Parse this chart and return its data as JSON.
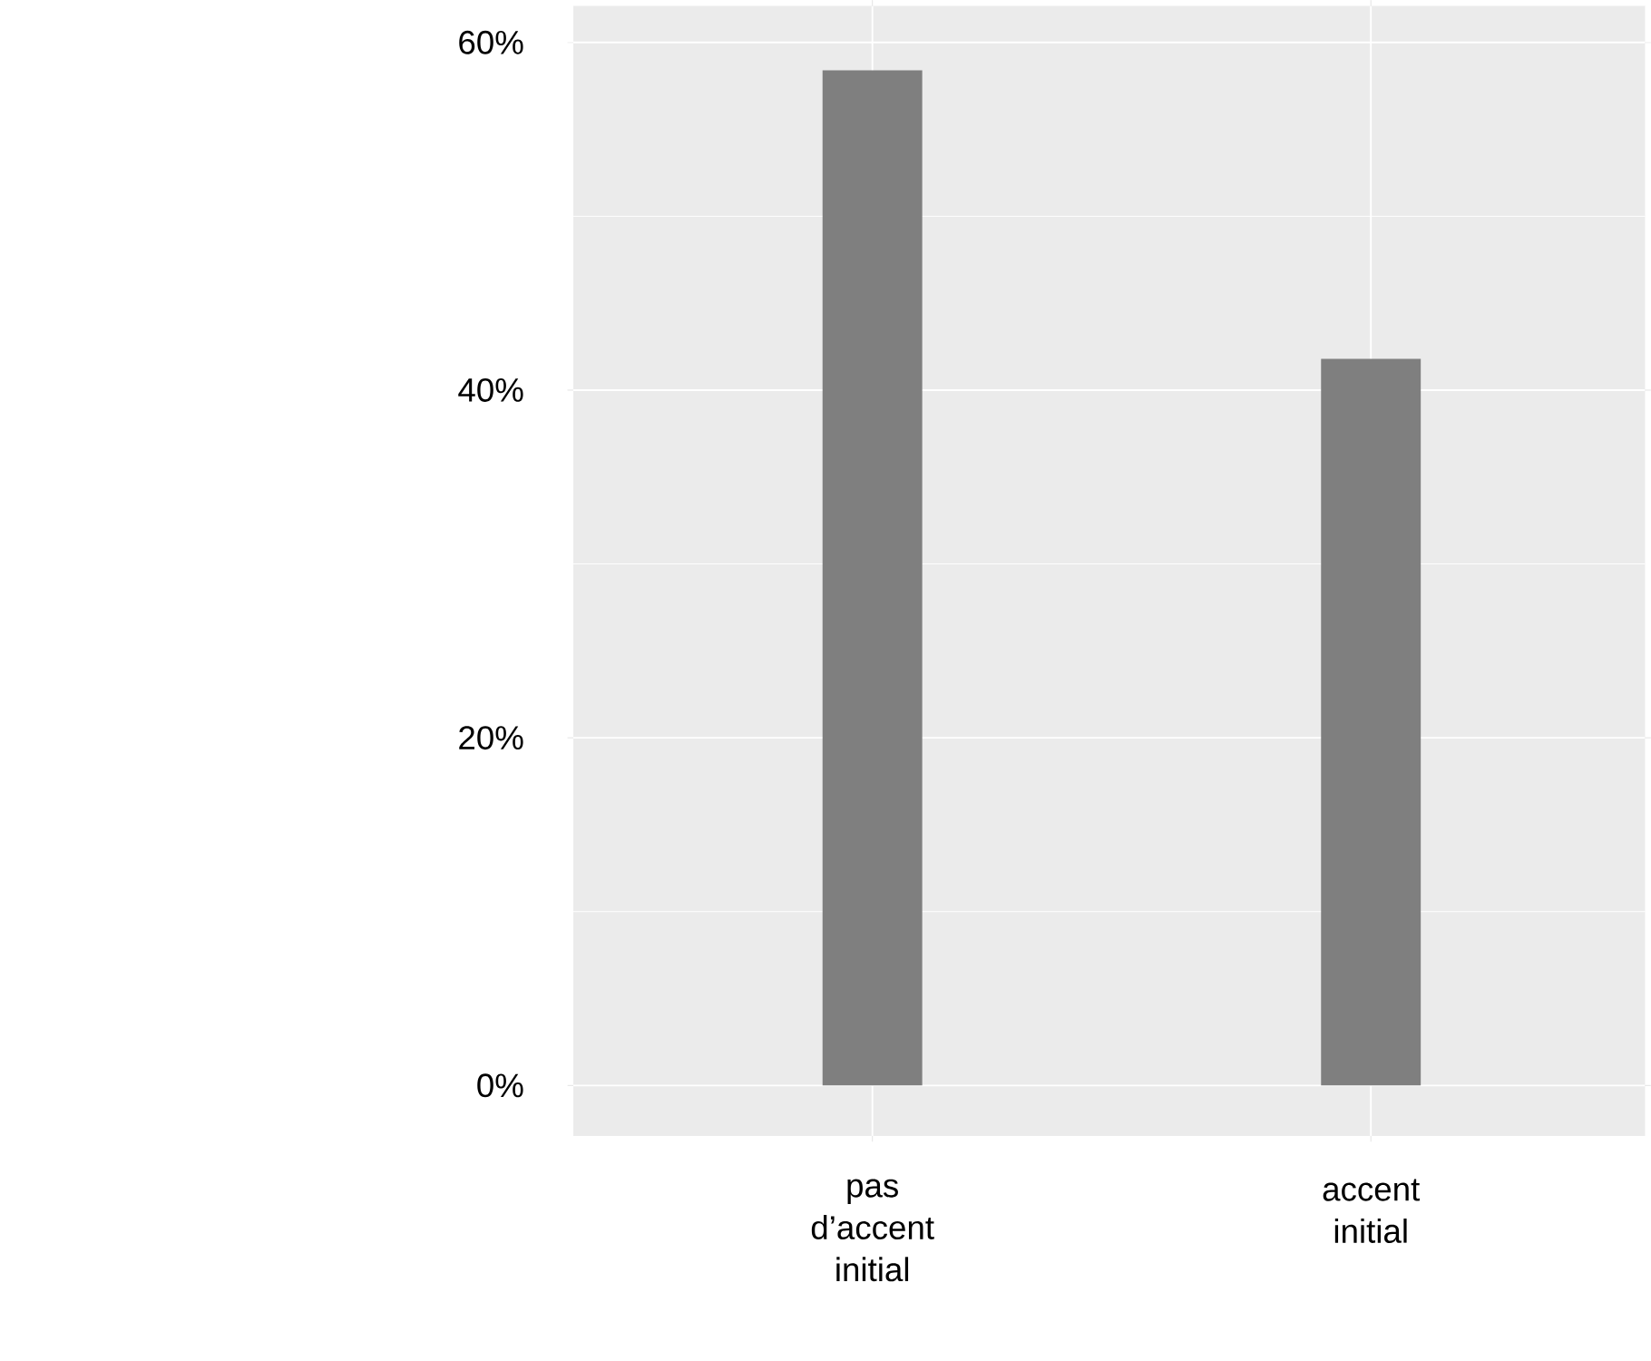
{
  "chart_data": {
    "type": "bar",
    "categories": [
      "pas d’accent initial",
      "accent initial"
    ],
    "values": [
      58.4,
      41.8
    ],
    "color": "#7f7f7f",
    "ylim": [
      -2.9,
      62.1
    ],
    "yticks": [
      {
        "value": 0,
        "label": "0%"
      },
      {
        "value": 20,
        "label": "20%"
      },
      {
        "value": 40,
        "label": "40%"
      },
      {
        "value": 60,
        "label": "60%"
      }
    ],
    "grid": true
  }
}
